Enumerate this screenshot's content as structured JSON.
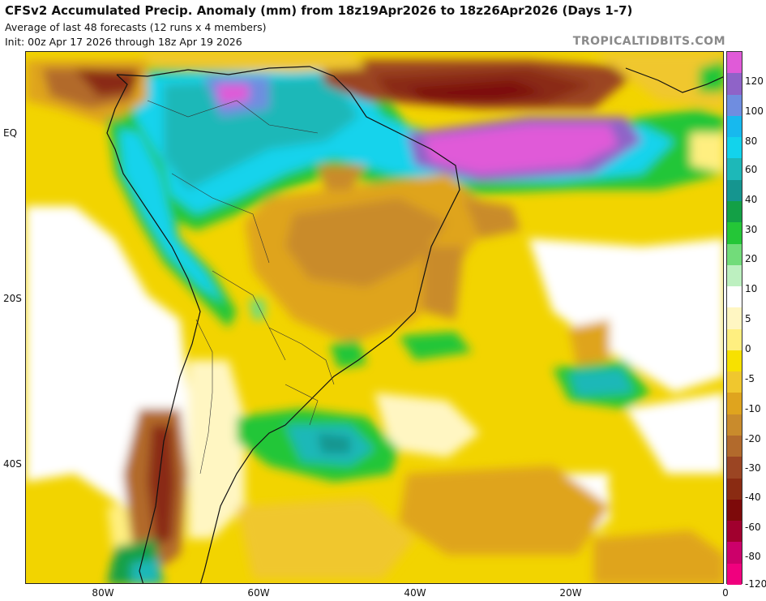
{
  "header": {
    "title": "CFSv2 Accumulated Precip. Anomaly (mm) from 18z19Apr2026 to 18z26Apr2026 (Days 1-7)",
    "subtitle1": "Average of last 48 forecasts (12 runs x 4 members)",
    "subtitle2": "Init: 00z Apr 17 2026 through 18z Apr 19 2026",
    "brand": "TROPICALTIDBITS.COM"
  },
  "axes": {
    "lat_labels": [
      "EQ",
      "20S",
      "40S"
    ],
    "lon_labels": [
      "80W",
      "60W",
      "40W",
      "20W",
      "0"
    ]
  },
  "colorbar": {
    "labels": [
      "120",
      "100",
      "80",
      "60",
      "40",
      "30",
      "20",
      "10",
      "5",
      "0",
      "-5",
      "-10",
      "-20",
      "-30",
      "-40",
      "-60",
      "-80",
      "-120"
    ],
    "colors": [
      "#e05ad8",
      "#8f63c8",
      "#6f8de0",
      "#17b9ee",
      "#12d3ec",
      "#1db8b8",
      "#15958f",
      "#13a046",
      "#24c637",
      "#72dc7a",
      "#bdf0c0",
      "#ffffff",
      "#fff6c2",
      "#ffef80",
      "#f7e100",
      "#f0c72e",
      "#dfa41e",
      "#c98b2c",
      "#b26a2c",
      "#9b4523",
      "#8a2b12",
      "#7d0a0a",
      "#a1002e",
      "#cc006a",
      "#f0007e"
    ]
  }
}
